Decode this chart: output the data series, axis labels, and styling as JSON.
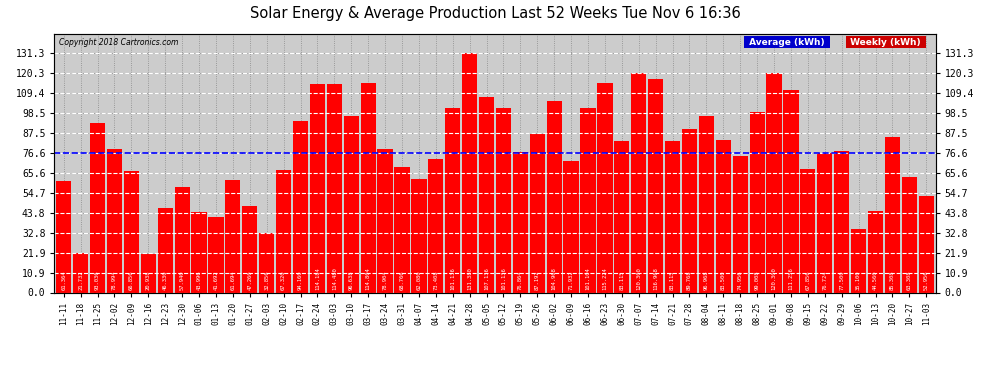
{
  "title": "Solar Energy & Average Production Last 52 Weeks Tue Nov 6 16:36",
  "copyright": "Copyright 2018 Cartronics.com",
  "average_value": 76.62,
  "bar_color": "#ff0000",
  "average_line_color": "#0000ff",
  "background_color": "#ffffff",
  "plot_bg_color": "#cccccc",
  "ylim": [
    0,
    142
  ],
  "yticks": [
    0.0,
    10.9,
    21.9,
    32.8,
    43.8,
    54.7,
    65.6,
    76.6,
    87.5,
    98.5,
    109.4,
    120.3,
    131.3
  ],
  "legend_avg_bg": "#0000cc",
  "legend_wkly_bg": "#cc0000",
  "legend_average_text": "Average (kWh)",
  "legend_weekly_text": "Weekly (kWh)",
  "weeks": [
    "11-11",
    "11-18",
    "11-25",
    "12-02",
    "12-09",
    "12-16",
    "12-23",
    "12-30",
    "01-06",
    "01-13",
    "01-20",
    "01-27",
    "02-03",
    "02-10",
    "02-17",
    "02-24",
    "03-03",
    "03-10",
    "03-17",
    "03-24",
    "03-31",
    "04-07",
    "04-14",
    "04-21",
    "04-28",
    "05-05",
    "05-12",
    "05-19",
    "05-26",
    "06-02",
    "06-09",
    "06-16",
    "06-23",
    "06-30",
    "07-07",
    "07-14",
    "07-21",
    "07-28",
    "08-04",
    "08-11",
    "08-18",
    "08-25",
    "09-01",
    "09-08",
    "09-15",
    "09-22",
    "09-29",
    "10-06",
    "10-13",
    "10-20",
    "10-27",
    "11-03"
  ],
  "values": [
    61.364,
    21.732,
    93.036,
    78.994,
    66.856,
    20.938,
    46.33,
    57.94,
    43.996,
    41.692,
    61.694,
    47.26,
    32.856,
    67.32,
    94.16,
    114.184,
    114.48,
    96.638,
    114.804,
    78.904,
    68.766,
    62.08,
    73.408,
    101.136,
    131.38,
    107.136,
    101.136,
    76.864,
    87.192,
    104.968,
    71.932,
    101.104,
    115.224,
    83.115,
    120.3,
    116.968,
    83.115,
    89.768,
    96.968,
    83.5,
    74.956,
    99.008,
    120.3,
    111.256,
    67.856,
    76.724,
    77.5,
    35.1,
    44.56,
    85.308,
    63.308,
    52.956
  ],
  "bar_labels": [
    "61.364",
    "21.732",
    "93.036",
    "78.994",
    "66.856",
    "20.938",
    "46.330",
    "57.940",
    "43.996",
    "41.692",
    "61.694",
    "47.260",
    "32.856",
    "67.320",
    "94.160",
    "114.184",
    "114.480",
    "96.638",
    "114.804",
    "78.904",
    "68.766",
    "62.080",
    "73.408",
    "101.136",
    "131.380",
    "107.136",
    "101.136",
    "76.864",
    "87.192",
    "104.968",
    "71.932",
    "101.104",
    "115.224",
    "83.115",
    "120.300",
    "116.968",
    "83.115",
    "89.768",
    "96.968",
    "83.500",
    "74.956",
    "99.008",
    "120.300",
    "111.256",
    "67.856",
    "76.724",
    "77.500",
    "35.100",
    "44.560",
    "85.308",
    "63.308",
    "52.956"
  ]
}
